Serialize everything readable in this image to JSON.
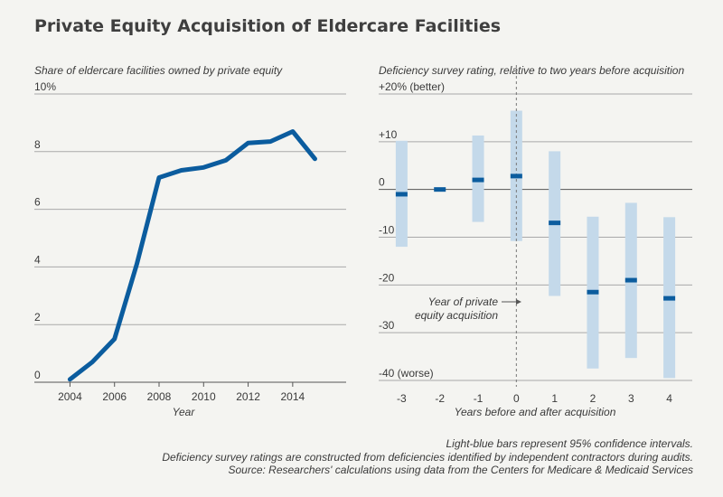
{
  "title": "Private Equity Acquisition of Eldercare Facilities",
  "notes": [
    "Light-blue bars represent 95% confidence intervals.",
    "Deficiency survey ratings are constructed from deficiencies identified by independent contractors during audits.",
    "Source: Researchers' calculations using data from the Centers for Medicare & Medicaid Services"
  ],
  "colors": {
    "line": "#0b5c9e",
    "ci": "#c4d9ea",
    "grid": "#a9a9a9",
    "background": "#f4f4f1"
  },
  "chart_data": [
    {
      "type": "line",
      "subtitle": "Share of eldercare facilities owned by private equity",
      "xlabel": "Year",
      "ylabel": "",
      "x": [
        2004,
        2005,
        2006,
        2007,
        2008,
        2009,
        2010,
        2011,
        2012,
        2013,
        2014,
        2015
      ],
      "series": [
        {
          "values": [
            0.1,
            0.7,
            1.5,
            4.1,
            7.1,
            7.35,
            7.45,
            7.7,
            8.3,
            8.35,
            8.7,
            7.75
          ]
        }
      ],
      "xlim": [
        2002.4,
        2016.4
      ],
      "ylim": [
        0,
        10
      ],
      "yticks": [
        0,
        2,
        4,
        6,
        8,
        10
      ],
      "ytick_labels": [
        "0",
        "2",
        "4",
        "6",
        "8",
        "10%"
      ],
      "xticks": [
        2004,
        2006,
        2008,
        2010,
        2012,
        2014
      ],
      "xtick_labels": [
        "2004",
        "2006",
        "2008",
        "2010",
        "2012",
        "2014"
      ],
      "grid": true
    },
    {
      "type": "scatter",
      "subtitle": "Deficiency survey rating, relative to two years before acquisition",
      "xlabel": "Years before and after acquisition",
      "ylabel": "",
      "categories": [
        "-3",
        "-2",
        "-1",
        "0",
        "1",
        "2",
        "3",
        "4"
      ],
      "x": [
        -3,
        -2,
        -1,
        0,
        1,
        2,
        3,
        4
      ],
      "values": [
        -1,
        0,
        2,
        2.8,
        -7,
        -21.5,
        -19,
        -22.8
      ],
      "ci_low": [
        -12,
        null,
        -6.8,
        -10.8,
        -22.3,
        -37.5,
        -35.3,
        -39.5
      ],
      "ci_high": [
        10.2,
        null,
        11.3,
        16.5,
        8,
        -5.7,
        -2.8,
        -5.8
      ],
      "xlim": [
        -3.6,
        4.6
      ],
      "ylim": [
        -40,
        20
      ],
      "yticks": [
        20,
        10,
        0,
        -10,
        -20,
        -30,
        -40
      ],
      "ytick_labels": [
        "+20% (better)",
        "+10",
        "0",
        "-10",
        "-20",
        "-30",
        "-40 (worse)"
      ],
      "annotation": [
        "Year of private",
        "equity acquisition"
      ],
      "grid": true
    }
  ]
}
